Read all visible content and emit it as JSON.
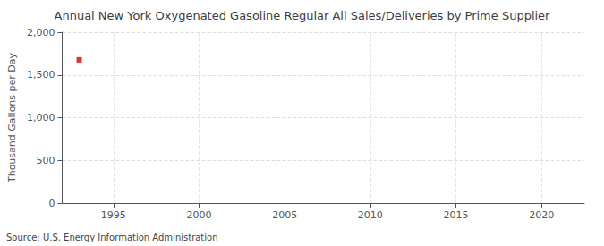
{
  "chart_data": {
    "type": "scatter",
    "title": "Annual New York Oxygenated Gasoline Regular All Sales/Deliveries by Prime Supplier",
    "ylabel": "Thousand Gallons per Day",
    "source": "Source: U.S. Energy Information Administration",
    "x": [
      1993
    ],
    "values": [
      1677
    ],
    "color": "#cc0000",
    "marker": "square",
    "xlim": [
      1992.0,
      2022.5
    ],
    "xticks": [
      1995,
      2000,
      2005,
      2010,
      2015,
      2020
    ],
    "ylim": [
      0,
      2000
    ],
    "yticks": [
      0,
      500,
      {
        "value": 1000,
        "label": "1,000"
      },
      {
        "value": 1500,
        "label": "1,500"
      },
      {
        "value": 2000,
        "label": "2,000"
      }
    ],
    "grid": true
  }
}
